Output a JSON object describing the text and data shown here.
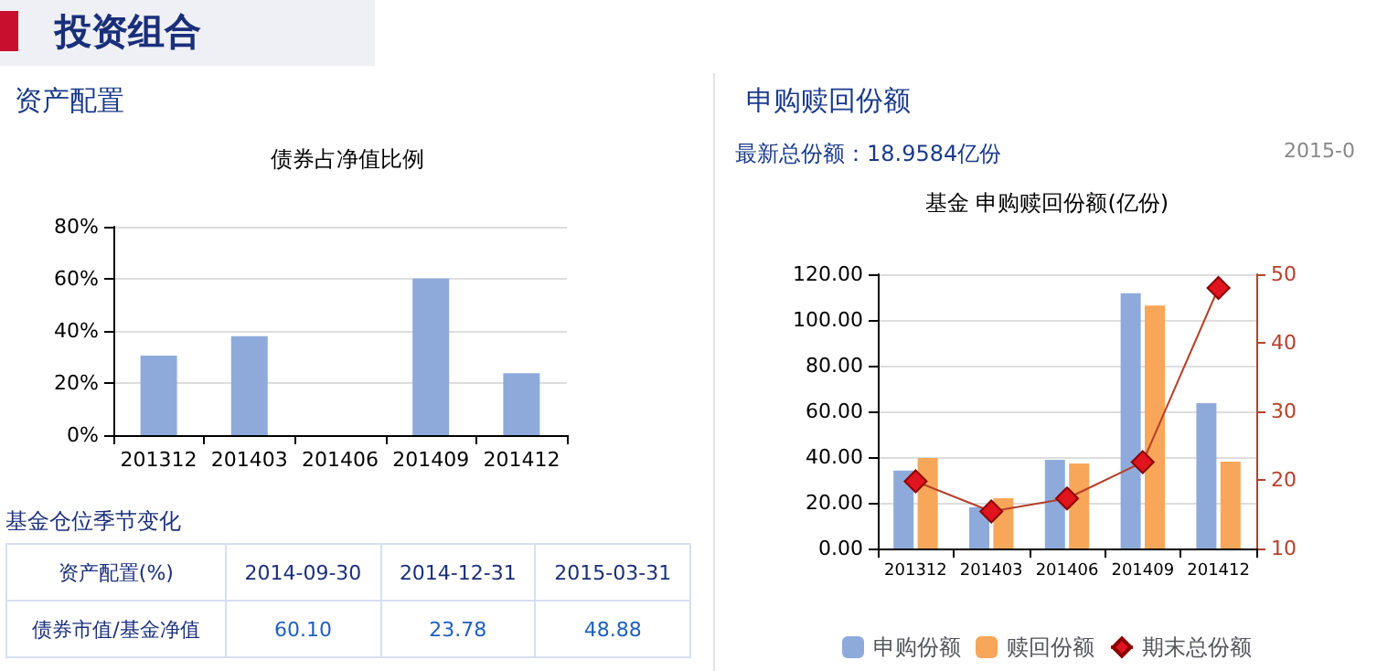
{
  "chart_data": [
    {
      "type": "bar",
      "title": "债券占净值比例",
      "annotations": [
        "投资组合",
        "资产配置"
      ],
      "categories": [
        "201312",
        "201403",
        "201406",
        "201409",
        "201412"
      ],
      "values": [
        30.5,
        38,
        0,
        60.1,
        23.8
      ],
      "color": "#8eaadb",
      "ylim": [
        0,
        80
      ],
      "yticks": [
        {
          "value": 0,
          "label": "0%"
        },
        {
          "value": 20,
          "label": "20%"
        },
        {
          "value": 40,
          "label": "40%"
        },
        {
          "value": 60,
          "label": "60%"
        },
        {
          "value": 80,
          "label": "80%"
        }
      ],
      "grid": "y",
      "legend": false
    },
    {
      "type": "other",
      "title": "基金仓位季节变化",
      "annotations": [
        "资产配置(%)",
        "债券市值/基金净值"
      ],
      "categories": [
        "2014-09-30",
        "2014-12-31",
        "2015-03-31"
      ],
      "values": [
        60.1,
        23.78,
        48.88
      ],
      "value_labels": [
        "60.10",
        "23.78",
        "48.88"
      ]
    },
    {
      "type": "bar",
      "title": "基金 申购赎回份额(亿份)",
      "annotations": [
        "申购赎回份额",
        "最新总份额：18.9584亿份",
        "2015-0"
      ],
      "categories": [
        "201312",
        "201403",
        "201406",
        "201409",
        "201412"
      ],
      "series": [
        {
          "name": "申购份额",
          "type": "bar",
          "color": "#8eaadb",
          "values": [
            34.1,
            18.1,
            38.8,
            111.7,
            63.6
          ]
        },
        {
          "name": "赎回份额",
          "type": "bar",
          "color": "#f8a65a",
          "values": [
            39.6,
            22,
            37.2,
            106.3,
            38
          ]
        },
        {
          "name": "期末总份额",
          "type": "line",
          "axis": "y2",
          "color": "#b5402a",
          "marker": "diamond",
          "values": [
            19.8,
            15.4,
            17.3,
            22.6,
            48
          ]
        }
      ],
      "ylim": [
        0,
        120
      ],
      "yticks": [
        {
          "value": 0,
          "label": "0.00"
        },
        {
          "value": 20,
          "label": "20.00"
        },
        {
          "value": 40,
          "label": "40.00"
        },
        {
          "value": 60,
          "label": "60.00"
        },
        {
          "value": 80,
          "label": "80.00"
        },
        {
          "value": 100,
          "label": "100.00"
        },
        {
          "value": 120,
          "label": "120.00"
        }
      ],
      "y2lim": [
        10,
        50
      ],
      "y2ticks": [
        10,
        20,
        30,
        40,
        50
      ],
      "grid": "y",
      "legend": "bottom"
    }
  ]
}
